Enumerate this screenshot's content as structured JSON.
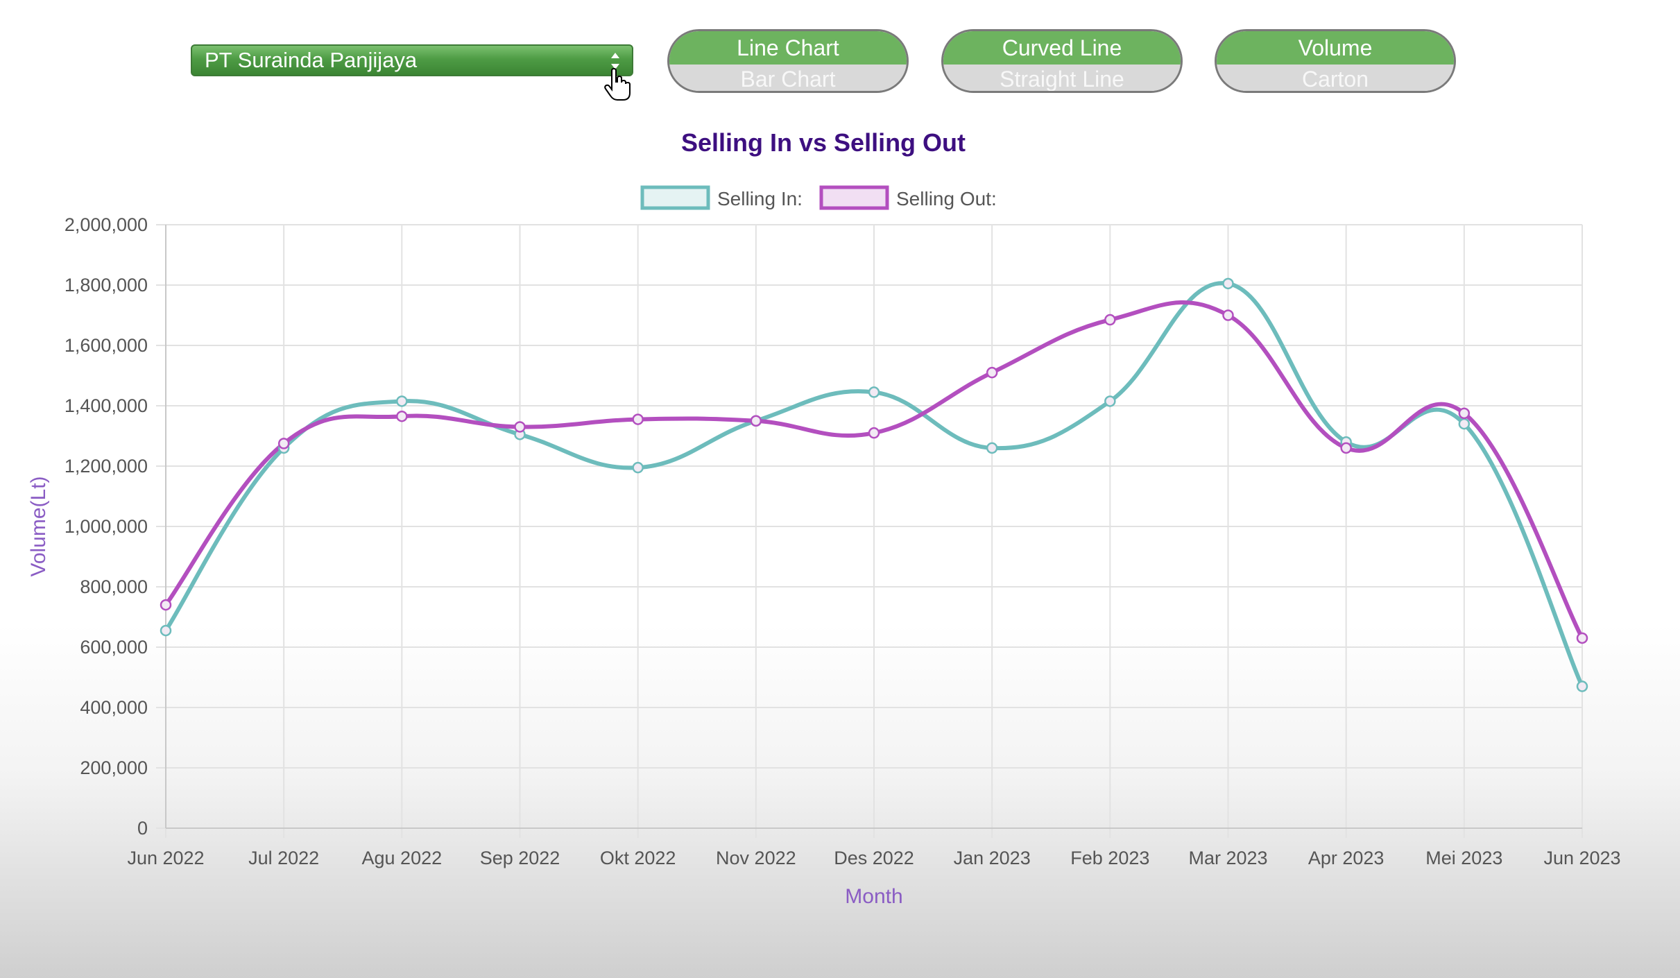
{
  "controls": {
    "company_select": {
      "value": "PT Suraindа Panjijaya"
    },
    "chart_type": {
      "active": "Line Chart",
      "inactive": "Bar Chart"
    },
    "line_style": {
      "active": "Curved Line",
      "inactive": "Straight Line"
    },
    "unit": {
      "active": "Volume",
      "inactive": "Carton"
    }
  },
  "colors": {
    "selling_in": "#6dbcbc",
    "selling_out": "#b34fbf",
    "title": "#3d0f80",
    "axis_title": "#8a5cc4",
    "toggle_on": "#6db35f"
  },
  "chart_data": {
    "type": "line",
    "title": "Selling In vs Selling Out",
    "xlabel": "Month",
    "ylabel": "Volume(Lt)",
    "ylim": [
      0,
      2000000
    ],
    "y_ticks": [
      "0",
      "200,000",
      "400,000",
      "600,000",
      "800,000",
      "1,000,000",
      "1,200,000",
      "1,400,000",
      "1,600,000",
      "1,800,000",
      "2,000,000"
    ],
    "categories": [
      "Jun 2022",
      "Jul 2022",
      "Agu 2022",
      "Sep 2022",
      "Okt 2022",
      "Nov 2022",
      "Des 2022",
      "Jan 2023",
      "Feb 2023",
      "Mar 2023",
      "Apr 2023",
      "Mei 2023",
      "Jun 2023"
    ],
    "series": [
      {
        "name": "Selling In:",
        "values": [
          655000,
          1260000,
          1415000,
          1305000,
          1195000,
          1350000,
          1445000,
          1260000,
          1415000,
          1805000,
          1280000,
          1340000,
          470000
        ]
      },
      {
        "name": "Selling Out:",
        "values": [
          740000,
          1275000,
          1365000,
          1330000,
          1355000,
          1350000,
          1310000,
          1510000,
          1685000,
          1700000,
          1260000,
          1375000,
          630000
        ]
      }
    ],
    "grid": true,
    "legend": "top-center"
  }
}
